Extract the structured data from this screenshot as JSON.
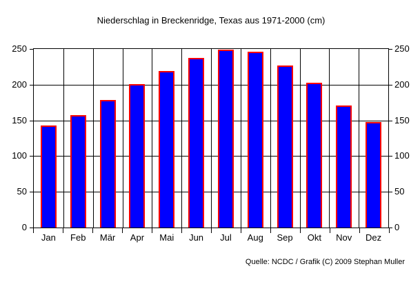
{
  "chart_data": {
    "type": "bar",
    "title": "Niederschlag in Breckenridge, Texas aus 1971-2000 (cm)",
    "source": "Quelle: NCDC / Grafik (C) 2009 Stephan Muller",
    "categories": [
      "Jan",
      "Feb",
      "Mär",
      "Apr",
      "Mai",
      "Jun",
      "Jul",
      "Aug",
      "Sep",
      "Okt",
      "Nov",
      "Dez"
    ],
    "values": [
      143,
      157,
      179,
      201,
      219,
      237,
      249,
      246,
      227,
      203,
      171,
      148
    ],
    "xlabel": "",
    "ylabel": "",
    "ylim": [
      0,
      250
    ],
    "yticks": [
      0,
      50,
      100,
      150,
      200,
      250
    ],
    "grid": true,
    "dual_y_axis": true,
    "legend": "none",
    "colors": {
      "bar_fill": "#0000ff",
      "bar_border": "#ff0000",
      "grid": "#000000",
      "text": "#000000",
      "background": "#ffffff"
    }
  }
}
